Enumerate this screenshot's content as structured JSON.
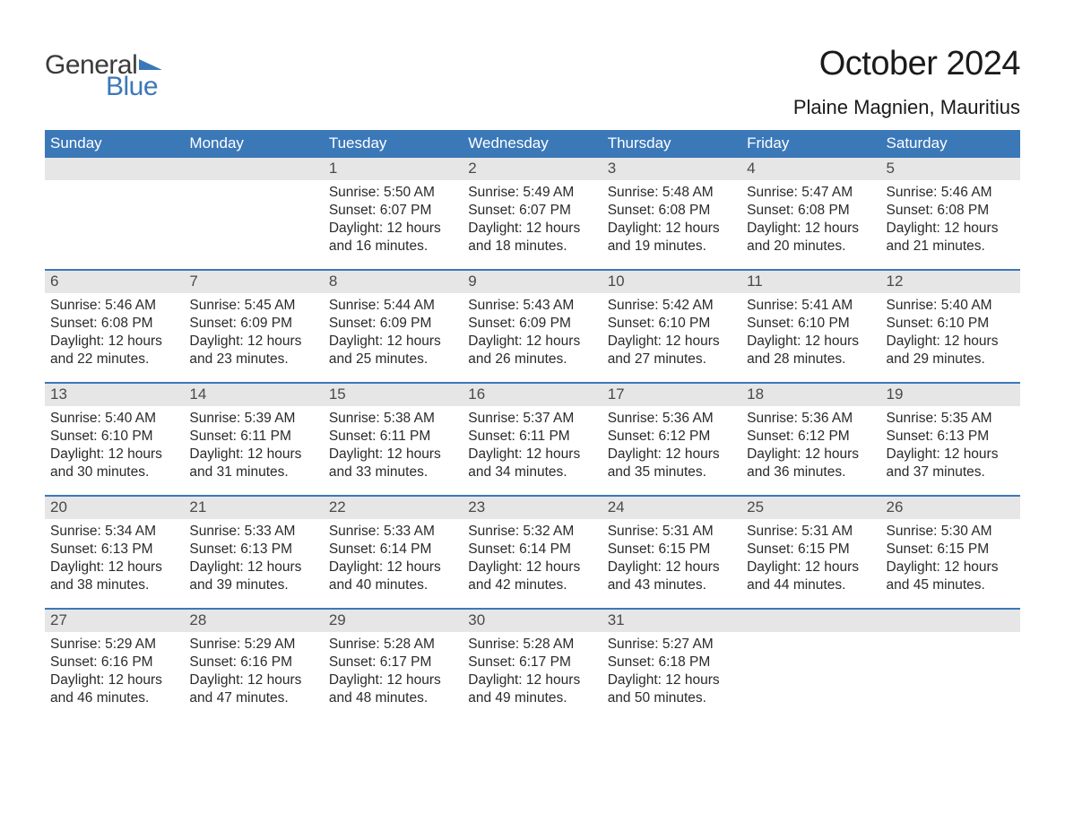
{
  "logo": {
    "word1": "General",
    "word2": "Blue",
    "icon_color": "#3b78b8",
    "text_color_dark": "#3a3a3a",
    "text_color_blue": "#3b78b8"
  },
  "title": "October 2024",
  "location": "Plaine Magnien, Mauritius",
  "colors": {
    "header_bg": "#3b78b8",
    "header_text": "#ffffff",
    "daynum_bg": "#e6e6e6",
    "daynum_text": "#4a4a4a",
    "body_text": "#2a2a2a",
    "week_border": "#3b78b8",
    "page_bg": "#ffffff"
  },
  "fonts": {
    "title_size_pt": 29,
    "location_size_pt": 17,
    "dow_size_pt": 13,
    "daynum_size_pt": 13,
    "body_size_pt": 12,
    "family": "Arial"
  },
  "days_of_week": [
    "Sunday",
    "Monday",
    "Tuesday",
    "Wednesday",
    "Thursday",
    "Friday",
    "Saturday"
  ],
  "weeks": [
    [
      {
        "num": "",
        "sunrise": "",
        "sunset": "",
        "daylight1": "",
        "daylight2": ""
      },
      {
        "num": "",
        "sunrise": "",
        "sunset": "",
        "daylight1": "",
        "daylight2": ""
      },
      {
        "num": "1",
        "sunrise": "Sunrise: 5:50 AM",
        "sunset": "Sunset: 6:07 PM",
        "daylight1": "Daylight: 12 hours",
        "daylight2": "and 16 minutes."
      },
      {
        "num": "2",
        "sunrise": "Sunrise: 5:49 AM",
        "sunset": "Sunset: 6:07 PM",
        "daylight1": "Daylight: 12 hours",
        "daylight2": "and 18 minutes."
      },
      {
        "num": "3",
        "sunrise": "Sunrise: 5:48 AM",
        "sunset": "Sunset: 6:08 PM",
        "daylight1": "Daylight: 12 hours",
        "daylight2": "and 19 minutes."
      },
      {
        "num": "4",
        "sunrise": "Sunrise: 5:47 AM",
        "sunset": "Sunset: 6:08 PM",
        "daylight1": "Daylight: 12 hours",
        "daylight2": "and 20 minutes."
      },
      {
        "num": "5",
        "sunrise": "Sunrise: 5:46 AM",
        "sunset": "Sunset: 6:08 PM",
        "daylight1": "Daylight: 12 hours",
        "daylight2": "and 21 minutes."
      }
    ],
    [
      {
        "num": "6",
        "sunrise": "Sunrise: 5:46 AM",
        "sunset": "Sunset: 6:08 PM",
        "daylight1": "Daylight: 12 hours",
        "daylight2": "and 22 minutes."
      },
      {
        "num": "7",
        "sunrise": "Sunrise: 5:45 AM",
        "sunset": "Sunset: 6:09 PM",
        "daylight1": "Daylight: 12 hours",
        "daylight2": "and 23 minutes."
      },
      {
        "num": "8",
        "sunrise": "Sunrise: 5:44 AM",
        "sunset": "Sunset: 6:09 PM",
        "daylight1": "Daylight: 12 hours",
        "daylight2": "and 25 minutes."
      },
      {
        "num": "9",
        "sunrise": "Sunrise: 5:43 AM",
        "sunset": "Sunset: 6:09 PM",
        "daylight1": "Daylight: 12 hours",
        "daylight2": "and 26 minutes."
      },
      {
        "num": "10",
        "sunrise": "Sunrise: 5:42 AM",
        "sunset": "Sunset: 6:10 PM",
        "daylight1": "Daylight: 12 hours",
        "daylight2": "and 27 minutes."
      },
      {
        "num": "11",
        "sunrise": "Sunrise: 5:41 AM",
        "sunset": "Sunset: 6:10 PM",
        "daylight1": "Daylight: 12 hours",
        "daylight2": "and 28 minutes."
      },
      {
        "num": "12",
        "sunrise": "Sunrise: 5:40 AM",
        "sunset": "Sunset: 6:10 PM",
        "daylight1": "Daylight: 12 hours",
        "daylight2": "and 29 minutes."
      }
    ],
    [
      {
        "num": "13",
        "sunrise": "Sunrise: 5:40 AM",
        "sunset": "Sunset: 6:10 PM",
        "daylight1": "Daylight: 12 hours",
        "daylight2": "and 30 minutes."
      },
      {
        "num": "14",
        "sunrise": "Sunrise: 5:39 AM",
        "sunset": "Sunset: 6:11 PM",
        "daylight1": "Daylight: 12 hours",
        "daylight2": "and 31 minutes."
      },
      {
        "num": "15",
        "sunrise": "Sunrise: 5:38 AM",
        "sunset": "Sunset: 6:11 PM",
        "daylight1": "Daylight: 12 hours",
        "daylight2": "and 33 minutes."
      },
      {
        "num": "16",
        "sunrise": "Sunrise: 5:37 AM",
        "sunset": "Sunset: 6:11 PM",
        "daylight1": "Daylight: 12 hours",
        "daylight2": "and 34 minutes."
      },
      {
        "num": "17",
        "sunrise": "Sunrise: 5:36 AM",
        "sunset": "Sunset: 6:12 PM",
        "daylight1": "Daylight: 12 hours",
        "daylight2": "and 35 minutes."
      },
      {
        "num": "18",
        "sunrise": "Sunrise: 5:36 AM",
        "sunset": "Sunset: 6:12 PM",
        "daylight1": "Daylight: 12 hours",
        "daylight2": "and 36 minutes."
      },
      {
        "num": "19",
        "sunrise": "Sunrise: 5:35 AM",
        "sunset": "Sunset: 6:13 PM",
        "daylight1": "Daylight: 12 hours",
        "daylight2": "and 37 minutes."
      }
    ],
    [
      {
        "num": "20",
        "sunrise": "Sunrise: 5:34 AM",
        "sunset": "Sunset: 6:13 PM",
        "daylight1": "Daylight: 12 hours",
        "daylight2": "and 38 minutes."
      },
      {
        "num": "21",
        "sunrise": "Sunrise: 5:33 AM",
        "sunset": "Sunset: 6:13 PM",
        "daylight1": "Daylight: 12 hours",
        "daylight2": "and 39 minutes."
      },
      {
        "num": "22",
        "sunrise": "Sunrise: 5:33 AM",
        "sunset": "Sunset: 6:14 PM",
        "daylight1": "Daylight: 12 hours",
        "daylight2": "and 40 minutes."
      },
      {
        "num": "23",
        "sunrise": "Sunrise: 5:32 AM",
        "sunset": "Sunset: 6:14 PM",
        "daylight1": "Daylight: 12 hours",
        "daylight2": "and 42 minutes."
      },
      {
        "num": "24",
        "sunrise": "Sunrise: 5:31 AM",
        "sunset": "Sunset: 6:15 PM",
        "daylight1": "Daylight: 12 hours",
        "daylight2": "and 43 minutes."
      },
      {
        "num": "25",
        "sunrise": "Sunrise: 5:31 AM",
        "sunset": "Sunset: 6:15 PM",
        "daylight1": "Daylight: 12 hours",
        "daylight2": "and 44 minutes."
      },
      {
        "num": "26",
        "sunrise": "Sunrise: 5:30 AM",
        "sunset": "Sunset: 6:15 PM",
        "daylight1": "Daylight: 12 hours",
        "daylight2": "and 45 minutes."
      }
    ],
    [
      {
        "num": "27",
        "sunrise": "Sunrise: 5:29 AM",
        "sunset": "Sunset: 6:16 PM",
        "daylight1": "Daylight: 12 hours",
        "daylight2": "and 46 minutes."
      },
      {
        "num": "28",
        "sunrise": "Sunrise: 5:29 AM",
        "sunset": "Sunset: 6:16 PM",
        "daylight1": "Daylight: 12 hours",
        "daylight2": "and 47 minutes."
      },
      {
        "num": "29",
        "sunrise": "Sunrise: 5:28 AM",
        "sunset": "Sunset: 6:17 PM",
        "daylight1": "Daylight: 12 hours",
        "daylight2": "and 48 minutes."
      },
      {
        "num": "30",
        "sunrise": "Sunrise: 5:28 AM",
        "sunset": "Sunset: 6:17 PM",
        "daylight1": "Daylight: 12 hours",
        "daylight2": "and 49 minutes."
      },
      {
        "num": "31",
        "sunrise": "Sunrise: 5:27 AM",
        "sunset": "Sunset: 6:18 PM",
        "daylight1": "Daylight: 12 hours",
        "daylight2": "and 50 minutes."
      },
      {
        "num": "",
        "sunrise": "",
        "sunset": "",
        "daylight1": "",
        "daylight2": ""
      },
      {
        "num": "",
        "sunrise": "",
        "sunset": "",
        "daylight1": "",
        "daylight2": ""
      }
    ]
  ]
}
